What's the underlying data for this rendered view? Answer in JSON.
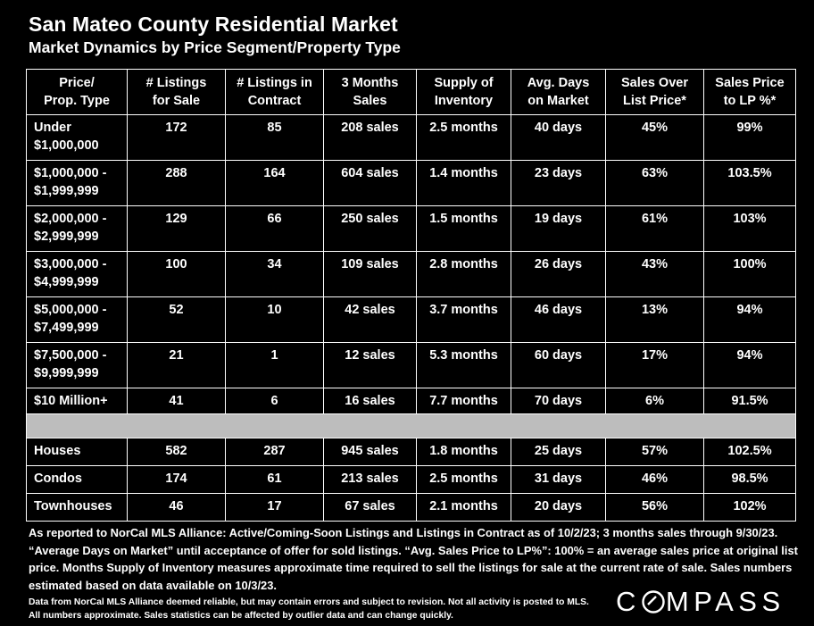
{
  "title": "San Mateo County Residential Market",
  "subtitle": "Market Dynamics by Price Segment/Property Type",
  "columns": [
    [
      "Price/",
      "Prop. Type"
    ],
    [
      "# Listings",
      "for Sale"
    ],
    [
      "# Listings in",
      "Contract"
    ],
    [
      "3 Months",
      "Sales"
    ],
    [
      "Supply of",
      "Inventory"
    ],
    [
      "Avg. Days",
      "on Market"
    ],
    [
      "Sales Over",
      "List Price*"
    ],
    [
      "Sales Price",
      "to LP %*"
    ]
  ],
  "segments": [
    {
      "label": [
        "Under",
        "$1,000,000"
      ],
      "listings": "172",
      "contract": "85",
      "sales": "208 sales",
      "supply": "2.5 months",
      "dom": "40 days",
      "over": "45%",
      "lp": "99%"
    },
    {
      "label": [
        "$1,000,000 -",
        "$1,999,999"
      ],
      "listings": "288",
      "contract": "164",
      "sales": "604 sales",
      "supply": "1.4 months",
      "dom": "23 days",
      "over": "63%",
      "lp": "103.5%"
    },
    {
      "label": [
        "$2,000,000 -",
        "$2,999,999"
      ],
      "listings": "129",
      "contract": "66",
      "sales": "250 sales",
      "supply": "1.5 months",
      "dom": "19 days",
      "over": "61%",
      "lp": "103%"
    },
    {
      "label": [
        "$3,000,000 -",
        "$4,999,999"
      ],
      "listings": "100",
      "contract": "34",
      "sales": "109 sales",
      "supply": "2.8 months",
      "dom": "26 days",
      "over": "43%",
      "lp": "100%"
    },
    {
      "label": [
        "$5,000,000 -",
        "$7,499,999"
      ],
      "listings": "52",
      "contract": "10",
      "sales": "42 sales",
      "supply": "3.7 months",
      "dom": "46 days",
      "over": "13%",
      "lp": "94%"
    },
    {
      "label": [
        "$7,500,000 -",
        "$9,999,999"
      ],
      "listings": "21",
      "contract": "1",
      "sales": "12 sales",
      "supply": "5.3 months",
      "dom": "60 days",
      "over": "17%",
      "lp": "94%"
    },
    {
      "label": [
        "$10 Million+",
        ""
      ],
      "listings": "41",
      "contract": "6",
      "sales": "16 sales",
      "supply": "7.7 months",
      "dom": "70 days",
      "over": "6%",
      "lp": "91.5%"
    }
  ],
  "property_types": [
    {
      "label": "Houses",
      "listings": "582",
      "contract": "287",
      "sales": "945 sales",
      "supply": "1.8 months",
      "dom": "25 days",
      "over": "57%",
      "lp": "102.5%"
    },
    {
      "label": "Condos",
      "listings": "174",
      "contract": "61",
      "sales": "213 sales",
      "supply": "2.5 months",
      "dom": "31 days",
      "over": "46%",
      "lp": "98.5%"
    },
    {
      "label": "Townhouses",
      "listings": "46",
      "contract": "17",
      "sales": "67 sales",
      "supply": "2.1 months",
      "dom": "20 days",
      "over": "56%",
      "lp": "102%"
    }
  ],
  "notes": "As reported to NorCal MLS Alliance: Active/Coming-Soon Listings and Listings in Contract as of 10/2/23; 3 months sales through 9/30/23. “Average Days on Market” until acceptance of offer for sold listings. “Avg. Sales Price to LP%”: 100% = an average sales price at original list price. Months Supply of Inventory measures approximate time required to sell the listings for sale at the current rate of sale. Sales numbers estimated based on data available on 10/3/23.",
  "source": "Data from NorCal MLS Alliance deemed reliable, but may contain errors and subject to revision.  Not all activity is posted to MLS. All numbers approximate. Sales statistics can be affected by outlier data and can change quickly.",
  "logo": {
    "pre": "C",
    "post": "MPASS",
    "accent": "#ffffff"
  }
}
